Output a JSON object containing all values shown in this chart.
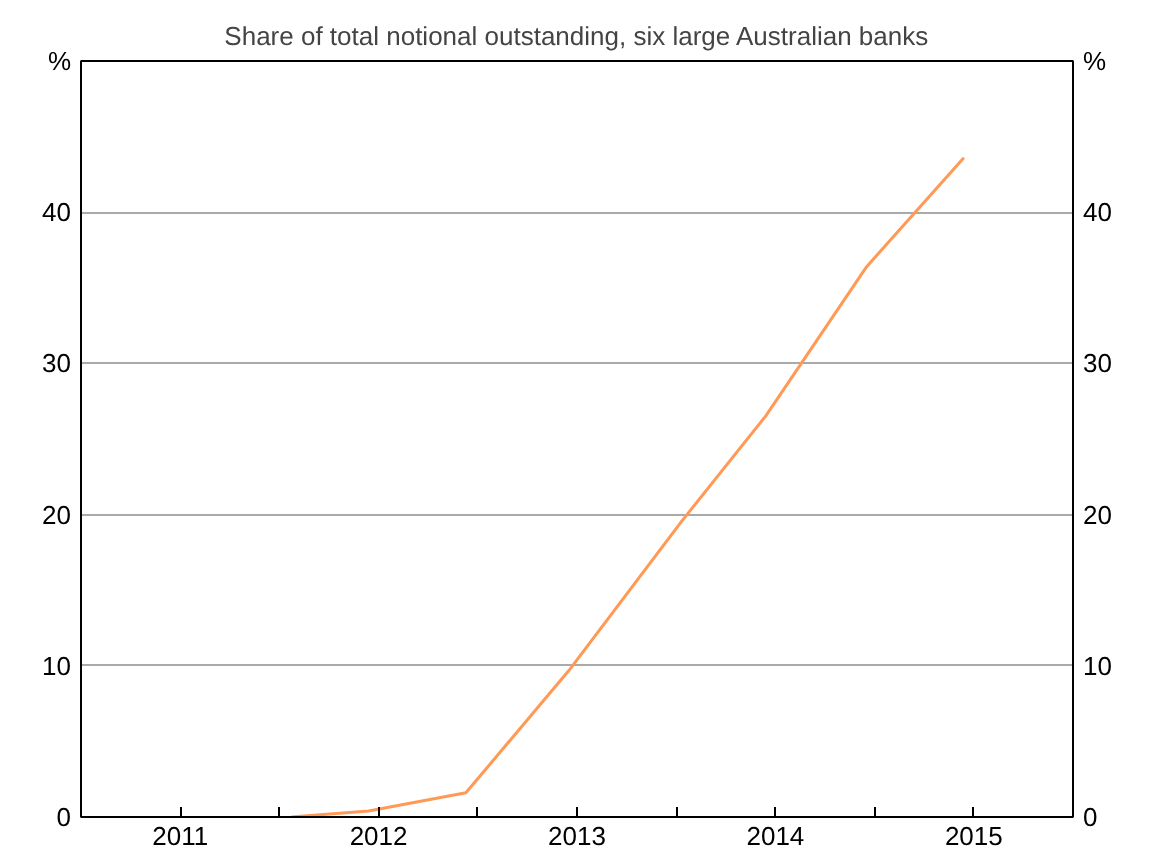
{
  "chart_data": {
    "type": "line",
    "title": "Share of total notional outstanding, six large Australian banks",
    "ylabel": "%",
    "y2label": "%",
    "x": [
      2012.06,
      2012.45,
      2012.94,
      2013.46,
      2014.03,
      2014.45,
      2014.96,
      2015.45
    ],
    "series": [
      {
        "color": "#ff9955",
        "values": [
          0,
          0.4,
          1.6,
          9.7,
          19.6,
          26.5,
          36.4,
          43.6
        ]
      }
    ],
    "xlim": [
      2011,
      2016
    ],
    "xticks": [
      {
        "value": 2011,
        "label": null
      },
      {
        "value": 2011.5,
        "label": "2011"
      },
      {
        "value": 2012,
        "label": null
      },
      {
        "value": 2012.5,
        "label": "2012"
      },
      {
        "value": 2013,
        "label": null
      },
      {
        "value": 2013.5,
        "label": "2013"
      },
      {
        "value": 2014,
        "label": null
      },
      {
        "value": 2014.5,
        "label": "2014"
      },
      {
        "value": 2015,
        "label": null
      },
      {
        "value": 2015.5,
        "label": "2015"
      },
      {
        "value": 2016,
        "label": null
      }
    ],
    "ylim": [
      0,
      50
    ],
    "yticks": [
      0,
      10,
      20,
      30,
      40
    ],
    "y2lim": [
      0,
      50
    ],
    "y2ticks": [
      0,
      10,
      20,
      30,
      40
    ],
    "grid": "y",
    "marker": "none",
    "line_style": "solid"
  }
}
